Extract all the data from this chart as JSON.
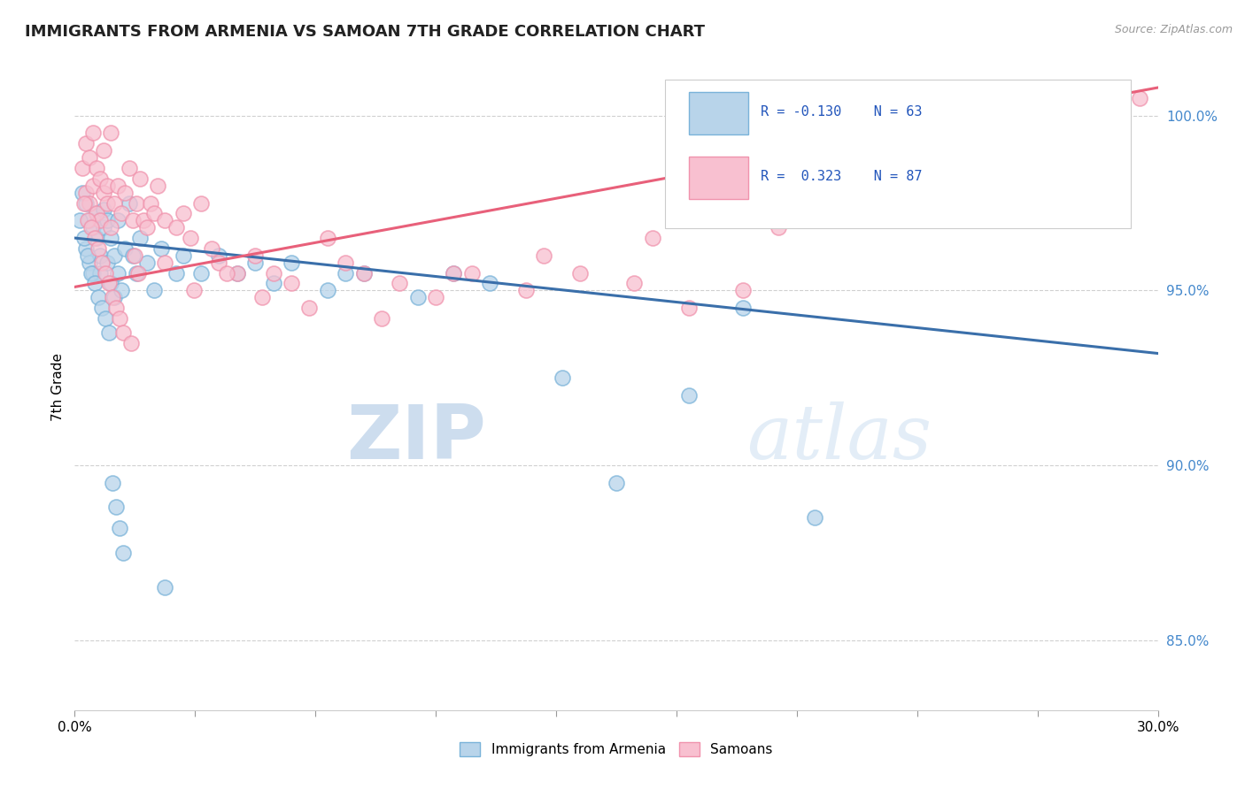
{
  "title": "IMMIGRANTS FROM ARMENIA VS SAMOAN 7TH GRADE CORRELATION CHART",
  "source_text": "Source: ZipAtlas.com",
  "ylabel": "7th Grade",
  "xlim": [
    0.0,
    30.0
  ],
  "ylim": [
    83.0,
    101.5
  ],
  "yticks": [
    85.0,
    90.0,
    95.0,
    100.0
  ],
  "ytick_labels": [
    "85.0%",
    "90.0%",
    "95.0%",
    "100.0%"
  ],
  "xticks": [
    0.0,
    3.333,
    6.667,
    10.0,
    13.333,
    16.667,
    20.0,
    23.333,
    26.667,
    30.0
  ],
  "blue_color": "#7ab3d9",
  "pink_color": "#f093ad",
  "blue_line_color": "#3a6faa",
  "pink_line_color": "#e8607a",
  "watermark_zip": "ZIP",
  "watermark_atlas": "atlas",
  "background_color": "#ffffff",
  "grid_color": "#d0d0d0",
  "blue_trend_x0": 0.0,
  "blue_trend_x1": 30.0,
  "blue_trend_y0": 96.5,
  "blue_trend_y1": 93.2,
  "pink_trend_x0": 0.0,
  "pink_trend_x1": 30.0,
  "pink_trend_y0": 95.1,
  "pink_trend_y1": 100.8,
  "blue_scatter_x": [
    0.2,
    0.3,
    0.3,
    0.4,
    0.4,
    0.5,
    0.5,
    0.6,
    0.6,
    0.7,
    0.7,
    0.8,
    0.8,
    0.9,
    0.9,
    1.0,
    1.0,
    1.1,
    1.1,
    1.2,
    1.2,
    1.3,
    1.4,
    1.5,
    1.6,
    1.7,
    1.8,
    2.0,
    2.2,
    2.4,
    2.8,
    3.0,
    3.5,
    4.0,
    4.5,
    5.0,
    5.5,
    6.0,
    7.0,
    7.5,
    8.0,
    9.5,
    10.5,
    11.5,
    13.5,
    15.0,
    17.0,
    18.5,
    20.5,
    0.15,
    0.25,
    0.35,
    0.45,
    0.55,
    0.65,
    0.75,
    0.85,
    0.95,
    1.05,
    1.15,
    1.25,
    1.35,
    2.5
  ],
  "blue_scatter_y": [
    97.8,
    97.5,
    96.2,
    97.0,
    95.8,
    96.8,
    95.5,
    96.5,
    97.2,
    96.0,
    95.5,
    97.3,
    96.8,
    95.8,
    97.0,
    96.5,
    95.2,
    96.0,
    94.8,
    95.5,
    97.0,
    95.0,
    96.2,
    97.5,
    96.0,
    95.5,
    96.5,
    95.8,
    95.0,
    96.2,
    95.5,
    96.0,
    95.5,
    96.0,
    95.5,
    95.8,
    95.2,
    95.8,
    95.0,
    95.5,
    95.5,
    94.8,
    95.5,
    95.2,
    92.5,
    89.5,
    92.0,
    94.5,
    88.5,
    97.0,
    96.5,
    96.0,
    95.5,
    95.2,
    94.8,
    94.5,
    94.2,
    93.8,
    89.5,
    88.8,
    88.2,
    87.5,
    86.5
  ],
  "pink_scatter_x": [
    0.2,
    0.3,
    0.3,
    0.4,
    0.4,
    0.5,
    0.5,
    0.6,
    0.6,
    0.7,
    0.7,
    0.8,
    0.8,
    0.9,
    0.9,
    1.0,
    1.0,
    1.1,
    1.2,
    1.3,
    1.4,
    1.5,
    1.6,
    1.7,
    1.8,
    1.9,
    2.0,
    2.1,
    2.2,
    2.3,
    2.5,
    2.8,
    3.0,
    3.2,
    3.5,
    3.8,
    4.0,
    4.5,
    5.0,
    5.5,
    6.0,
    7.0,
    7.5,
    8.0,
    9.0,
    10.0,
    11.0,
    12.5,
    14.0,
    15.5,
    17.0,
    18.5,
    0.25,
    0.35,
    0.45,
    0.55,
    0.65,
    0.75,
    0.85,
    0.95,
    1.05,
    1.15,
    1.25,
    1.35,
    1.55,
    1.65,
    1.75,
    2.5,
    3.3,
    4.2,
    5.2,
    6.5,
    8.5,
    10.5,
    13.0,
    16.0,
    18.0,
    19.5,
    20.5,
    22.0,
    24.0,
    25.5,
    27.5,
    29.5,
    28.5,
    29.0
  ],
  "pink_scatter_y": [
    98.5,
    97.8,
    99.2,
    97.5,
    98.8,
    98.0,
    99.5,
    97.2,
    98.5,
    97.0,
    98.2,
    97.8,
    99.0,
    97.5,
    98.0,
    96.8,
    99.5,
    97.5,
    98.0,
    97.2,
    97.8,
    98.5,
    97.0,
    97.5,
    98.2,
    97.0,
    96.8,
    97.5,
    97.2,
    98.0,
    97.0,
    96.8,
    97.2,
    96.5,
    97.5,
    96.2,
    95.8,
    95.5,
    96.0,
    95.5,
    95.2,
    96.5,
    95.8,
    95.5,
    95.2,
    94.8,
    95.5,
    95.0,
    95.5,
    95.2,
    94.5,
    95.0,
    97.5,
    97.0,
    96.8,
    96.5,
    96.2,
    95.8,
    95.5,
    95.2,
    94.8,
    94.5,
    94.2,
    93.8,
    93.5,
    96.0,
    95.5,
    95.8,
    95.0,
    95.5,
    94.8,
    94.5,
    94.2,
    95.5,
    96.0,
    96.5,
    97.5,
    96.8,
    98.0,
    99.0,
    99.5,
    99.2,
    99.8,
    100.5,
    100.2,
    100.8
  ]
}
